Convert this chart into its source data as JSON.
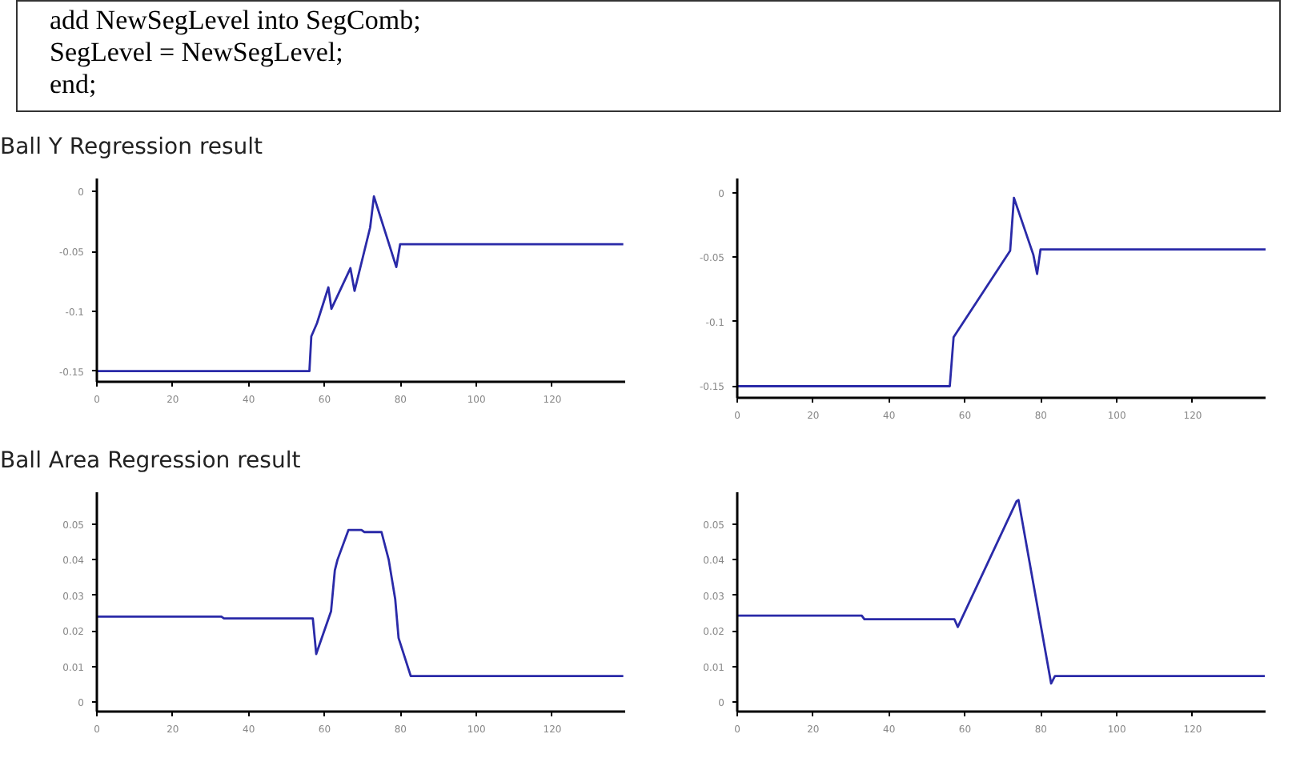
{
  "chart_data": [
    {
      "type": "line",
      "title": "Ball Y Regression  result",
      "annotations": [
        "add NewSegLevel into SegComb;",
        "SegLevel = NewSegLevel;",
        "end;"
      ],
      "xlim": [
        0,
        139.2
      ],
      "ylim": [
        -0.159,
        0.011
      ],
      "xticks": [
        0,
        20,
        40,
        60,
        80,
        100,
        120
      ],
      "yticks": [
        -0.15,
        -0.1,
        -0.05,
        0
      ],
      "grid": false,
      "series": [
        {
          "color": "#2a2aa8",
          "x": [
            0,
            56,
            56.5,
            58,
            61,
            61.8,
            66.8,
            67.9,
            72,
            73,
            78.9,
            79.9,
            138.7
          ],
          "values": [
            -0.15,
            -0.15,
            -0.121,
            -0.11,
            -0.08,
            -0.098,
            -0.064,
            -0.083,
            -0.03,
            -0.004,
            -0.063,
            -0.044,
            -0.044
          ]
        }
      ]
    },
    {
      "type": "line",
      "xlim": [
        0,
        139.2
      ],
      "ylim": [
        -0.159,
        0.011
      ],
      "xticks": [
        0,
        20,
        40,
        60,
        80,
        100,
        120
      ],
      "yticks": [
        -0.15,
        -0.1,
        -0.05,
        0
      ],
      "grid": false,
      "series": [
        {
          "color": "#2a2aa8",
          "x": [
            0,
            56,
            57,
            71.9,
            72.9,
            78,
            79,
            79.9,
            139.2
          ],
          "values": [
            -0.15,
            -0.15,
            -0.112,
            -0.045,
            -0.004,
            -0.048,
            -0.063,
            -0.044,
            -0.044
          ]
        }
      ]
    },
    {
      "type": "line",
      "title": "Ball Area Regression  result",
      "xlim": [
        0,
        139.2
      ],
      "ylim": [
        -0.0027,
        0.059
      ],
      "xticks": [
        0,
        20,
        40,
        60,
        80,
        100,
        120
      ],
      "yticks": [
        0,
        0.01,
        0.02,
        0.03,
        0.04,
        0.05
      ],
      "grid": false,
      "series": [
        {
          "color": "#2a2aa8",
          "x": [
            0,
            32.8,
            33.5,
            56.9,
            57.8,
            61.7,
            62.7,
            63.4,
            66.3,
            69.7,
            70.5,
            75,
            76.9,
            78.6,
            79.5,
            82.7,
            138.7
          ],
          "values": [
            0.024,
            0.024,
            0.0235,
            0.0235,
            0.0135,
            0.0255,
            0.037,
            0.04,
            0.0484,
            0.0484,
            0.0478,
            0.0478,
            0.04,
            0.029,
            0.018,
            0.0073,
            0.0073
          ]
        }
      ]
    },
    {
      "type": "line",
      "xlim": [
        0,
        139.2
      ],
      "ylim": [
        -0.0027,
        0.059
      ],
      "xticks": [
        0,
        20,
        40,
        60,
        80,
        100,
        120
      ],
      "yticks": [
        0,
        0.01,
        0.02,
        0.03,
        0.04,
        0.05
      ],
      "grid": false,
      "series": [
        {
          "color": "#2a2aa8",
          "x": [
            0,
            32.8,
            33.5,
            57.2,
            58.1,
            73.6,
            74.1,
            82.7,
            83.7,
            139
          ],
          "values": [
            0.0243,
            0.0243,
            0.0233,
            0.0233,
            0.0211,
            0.0565,
            0.0568,
            0.0052,
            0.0073,
            0.0073
          ]
        }
      ]
    }
  ]
}
